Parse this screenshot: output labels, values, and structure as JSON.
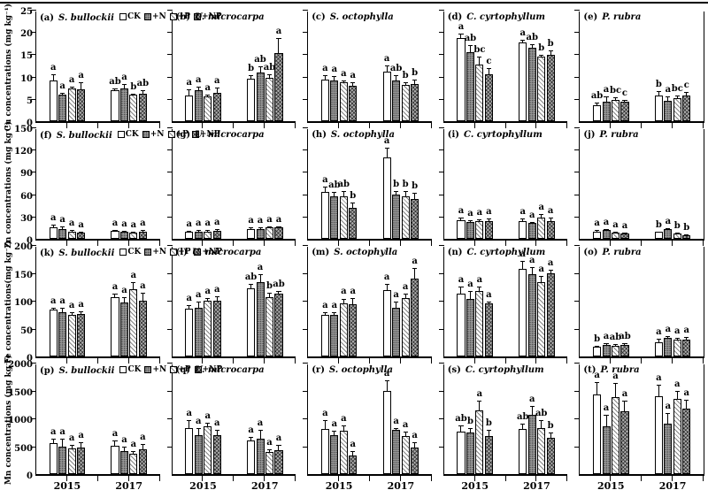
{
  "chart_data": {
    "type": "bar",
    "x_categories": [
      "2015",
      "2017"
    ],
    "treatments": [
      {
        "label": "CK",
        "pattern": "ck"
      },
      {
        "label": "+N",
        "pattern": "n"
      },
      {
        "label": "+P",
        "pattern": "p"
      },
      {
        "label": "+NP",
        "pattern": "np"
      }
    ],
    "rows": [
      {
        "element": "Cu",
        "ylabel": "Cu concentrations (mg kg⁻¹)",
        "ymax": 25,
        "yticks": [
          0,
          5,
          10,
          15,
          20,
          25
        ]
      },
      {
        "element": "Zn",
        "ylabel": "Zn concentrations (mg kg⁻¹)",
        "ymax": 150,
        "yticks": [
          0,
          30,
          60,
          90,
          120,
          150
        ]
      },
      {
        "element": "Fe",
        "ylabel": "Fe concentrations(mg kg⁻¹)",
        "ymax": 200,
        "yticks": [
          0,
          50,
          100,
          150,
          200
        ]
      },
      {
        "element": "Mn",
        "ylabel": "Mn concentrations (mg kg⁻¹)",
        "ymax": 2000,
        "yticks": [
          0,
          500,
          1000,
          1500,
          2000
        ]
      }
    ],
    "panels": [
      {
        "id": "a",
        "label": "(a)",
        "species": "S. bullockii",
        "element": "Cu",
        "groups": [
          {
            "year": "2015",
            "values": [
              9.2,
              5.9,
              7.4,
              7.2
            ],
            "errors": [
              1.4,
              0.4,
              0.4,
              1.6
            ],
            "letters": [
              "a",
              "a",
              "a",
              "a"
            ]
          },
          {
            "year": "2017",
            "values": [
              7.0,
              7.4,
              5.9,
              6.2
            ],
            "errors": [
              0.4,
              0.9,
              0.3,
              0.8
            ],
            "letters": [
              "ab",
              "a",
              "b",
              "ab"
            ]
          }
        ]
      },
      {
        "id": "b",
        "label": "(b)",
        "species": "U. microcarpa",
        "element": "Cu",
        "groups": [
          {
            "year": "2015",
            "values": [
              5.8,
              7.0,
              5.5,
              6.4
            ],
            "errors": [
              1.3,
              0.7,
              0.4,
              1.2
            ],
            "letters": [
              "a",
              "a",
              "a",
              "a"
            ]
          },
          {
            "year": "2017",
            "values": [
              9.5,
              11.0,
              9.7,
              15.3
            ],
            "errors": [
              0.8,
              1.4,
              0.9,
              3.3
            ],
            "letters": [
              "b",
              "ab",
              "ab",
              "a"
            ]
          }
        ]
      },
      {
        "id": "c",
        "label": "(c)",
        "species": "S. octophylla",
        "element": "Cu",
        "groups": [
          {
            "year": "2015",
            "values": [
              9.4,
              9.2,
              8.7,
              7.9
            ],
            "errors": [
              0.9,
              0.9,
              0.5,
              0.9
            ],
            "letters": [
              "a",
              "a",
              "a",
              "a"
            ]
          },
          {
            "year": "2017",
            "values": [
              11.2,
              9.2,
              8.2,
              8.3
            ],
            "errors": [
              1.3,
              1.2,
              0.6,
              1.0
            ],
            "letters": [
              "a",
              "ab",
              "b",
              "b"
            ]
          }
        ]
      },
      {
        "id": "d",
        "label": "(d)",
        "species": "C. cyrtophyllum",
        "element": "Cu",
        "groups": [
          {
            "year": "2015",
            "values": [
              18.6,
              15.4,
              12.7,
              10.5
            ],
            "errors": [
              1.0,
              1.7,
              1.8,
              1.5
            ],
            "letters": [
              "a",
              "ab",
              "bc",
              "c"
            ]
          },
          {
            "year": "2017",
            "values": [
              17.6,
              16.5,
              14.4,
              14.8
            ],
            "errors": [
              0.6,
              0.8,
              0.5,
              1.0
            ],
            "letters": [
              "a",
              "ab",
              "b",
              "b"
            ]
          }
        ]
      },
      {
        "id": "e",
        "label": "(e)",
        "species": "P. rubra",
        "element": "Cu",
        "groups": [
          {
            "year": "2015",
            "values": [
              3.6,
              4.4,
              4.7,
              4.3
            ],
            "errors": [
              0.5,
              1.2,
              0.6,
              0.4
            ],
            "letters": [
              "ab",
              "a",
              "bc",
              "c"
            ]
          },
          {
            "year": "2017",
            "values": [
              5.7,
              4.6,
              5.2,
              5.8
            ],
            "errors": [
              1.1,
              0.9,
              0.6,
              0.7
            ],
            "letters": [
              "b",
              "a",
              "bc",
              "c"
            ]
          }
        ]
      },
      {
        "id": "f",
        "label": "(f)",
        "species": "S. bullockii",
        "element": "Zn",
        "groups": [
          {
            "year": "2015",
            "values": [
              15,
              13,
              10,
              8
            ],
            "errors": [
              3.5,
              3.5,
              1.5,
              1.0
            ],
            "letters": [
              "a",
              "a",
              "a",
              "a"
            ]
          },
          {
            "year": "2017",
            "values": [
              11,
              9,
              8.5,
              10
            ],
            "errors": [
              1.5,
              1.5,
              1.0,
              1.5
            ],
            "letters": [
              "a",
              "a",
              "a",
              "a"
            ]
          }
        ]
      },
      {
        "id": "g",
        "label": "(g)",
        "species": "U. microcarpa",
        "element": "Zn",
        "groups": [
          {
            "year": "2015",
            "values": [
              9,
              10,
              10,
              11
            ],
            "errors": [
              1.5,
              1.5,
              1.5,
              2.0
            ],
            "letters": [
              "a",
              "a",
              "a",
              "a"
            ]
          },
          {
            "year": "2017",
            "values": [
              13,
              13,
              15,
              15
            ],
            "errors": [
              2,
              2,
              2,
              2
            ],
            "letters": [
              "a",
              "a",
              "a",
              "a"
            ]
          }
        ]
      },
      {
        "id": "h",
        "label": "(h)",
        "species": "S. octophylla",
        "element": "Zn",
        "groups": [
          {
            "year": "2015",
            "values": [
              63,
              57,
              57,
              42
            ],
            "errors": [
              7,
              6,
              7,
              7
            ],
            "letters": [
              "a",
              "ab",
              "ab",
              "b"
            ]
          },
          {
            "year": "2017",
            "values": [
              110,
              59,
              57,
              53
            ],
            "errors": [
              13,
              5,
              7,
              9
            ],
            "letters": [
              "a",
              "b",
              "b",
              "b"
            ]
          }
        ]
      },
      {
        "id": "i",
        "label": "(i)",
        "species": "C. cyrtophyllum",
        "element": "Zn",
        "groups": [
          {
            "year": "2015",
            "values": [
              25,
              23,
              24,
              24
            ],
            "errors": [
              4,
              2,
              2,
              3
            ],
            "letters": [
              "a",
              "a",
              "a",
              "a"
            ]
          },
          {
            "year": "2017",
            "values": [
              24,
              21,
              28,
              24
            ],
            "errors": [
              3,
              2,
              5,
              4
            ],
            "letters": [
              "a",
              "a",
              "a",
              "a"
            ]
          }
        ]
      },
      {
        "id": "j",
        "label": "(j)",
        "species": "P. rubra",
        "element": "Zn",
        "groups": [
          {
            "year": "2015",
            "values": [
              10,
              12,
              8,
              7
            ],
            "errors": [
              1.5,
              1.5,
              1.0,
              1.0
            ],
            "letters": [
              "a",
              "a",
              "a",
              "a"
            ]
          },
          {
            "year": "2017",
            "values": [
              9,
              13,
              7,
              5
            ],
            "errors": [
              1.0,
              1.5,
              1.0,
              1.0
            ],
            "letters": [
              "b",
              "a",
              "b",
              "b"
            ]
          }
        ]
      },
      {
        "id": "k",
        "label": "(k)",
        "species": "S. bullockii",
        "element": "Fe",
        "groups": [
          {
            "year": "2015",
            "values": [
              84,
              79,
              74,
              76
            ],
            "errors": [
              3,
              8,
              6,
              5
            ],
            "letters": [
              "a",
              "a",
              "a",
              "a"
            ]
          },
          {
            "year": "2017",
            "values": [
              106,
              97,
              121,
              100
            ],
            "errors": [
              7,
              9,
              12,
              14
            ],
            "letters": [
              "a",
              "a",
              "a",
              "a"
            ]
          }
        ]
      },
      {
        "id": "l",
        "label": "(l)",
        "species": "U. microcarpa",
        "element": "Fe",
        "groups": [
          {
            "year": "2015",
            "values": [
              85,
              88,
              100,
              100
            ],
            "errors": [
              7,
              10,
              4,
              8
            ],
            "letters": [
              "a",
              "a",
              "a",
              "a"
            ]
          },
          {
            "year": "2017",
            "values": [
              122,
              133,
              107,
              112
            ],
            "errors": [
              8,
              15,
              7,
              6
            ],
            "letters": [
              "ab",
              "a",
              "b",
              "ab"
            ]
          }
        ]
      },
      {
        "id": "m",
        "label": "(m)",
        "species": "S. octophylla",
        "element": "Fe",
        "groups": [
          {
            "year": "2015",
            "values": [
              75,
              75,
              95,
              94
            ],
            "errors": [
              4,
              4,
              9,
              10
            ],
            "letters": [
              "a",
              "a",
              "a",
              "a"
            ]
          },
          {
            "year": "2017",
            "values": [
              119,
              88,
              104,
              140
            ],
            "errors": [
              11,
              10,
              9,
              18
            ],
            "letters": [
              "a",
              "a",
              "a",
              "a"
            ]
          }
        ]
      },
      {
        "id": "n",
        "label": "(n)",
        "species": "C. cyrtophyllum",
        "element": "Fe",
        "groups": [
          {
            "year": "2015",
            "values": [
              113,
              103,
              118,
              95
            ],
            "errors": [
              12,
              14,
              8,
              4
            ],
            "letters": [
              "a",
              "a",
              "a",
              "a"
            ]
          },
          {
            "year": "2017",
            "values": [
              157,
              148,
              133,
              150
            ],
            "errors": [
              15,
              12,
              12,
              5
            ],
            "letters": [
              "a",
              "a",
              "a",
              "a"
            ]
          }
        ]
      },
      {
        "id": "o",
        "label": "(o)",
        "species": "P. rubra",
        "element": "Fe",
        "groups": [
          {
            "year": "2015",
            "values": [
              17,
              21,
              19,
              20
            ],
            "errors": [
              2,
              3,
              3,
              4
            ],
            "letters": [
              "b",
              "a",
              "ab",
              "ab"
            ]
          },
          {
            "year": "2017",
            "values": [
              26,
              33,
              30,
              30
            ],
            "errors": [
              6,
              3,
              4,
              5
            ],
            "letters": [
              "a",
              "a",
              "a",
              "a"
            ]
          }
        ]
      },
      {
        "id": "p",
        "label": "(p)",
        "species": "S. bullockii",
        "element": "Mn",
        "groups": [
          {
            "year": "2015",
            "values": [
              560,
              500,
              460,
              480
            ],
            "errors": [
              70,
              140,
              60,
              90
            ],
            "letters": [
              "a",
              "a",
              "a",
              "a"
            ]
          },
          {
            "year": "2017",
            "values": [
              510,
              410,
              360,
              450
            ],
            "errors": [
              90,
              90,
              50,
              90
            ],
            "letters": [
              "a",
              "a",
              "a",
              "a"
            ]
          }
        ]
      },
      {
        "id": "q",
        "label": "(q)",
        "species": "U. microcarpa",
        "element": "Mn",
        "groups": [
          {
            "year": "2015",
            "values": [
              820,
              700,
              860,
              700
            ],
            "errors": [
              150,
              120,
              60,
              90
            ],
            "letters": [
              "a",
              "a",
              "a",
              "a"
            ]
          },
          {
            "year": "2017",
            "values": [
              600,
              640,
              400,
              430
            ],
            "errors": [
              60,
              160,
              50,
              90
            ],
            "letters": [
              "a",
              "a",
              "a",
              "a"
            ]
          }
        ]
      },
      {
        "id": "r",
        "label": "(r)",
        "species": "S. octophylla",
        "element": "Mn",
        "groups": [
          {
            "year": "2015",
            "values": [
              810,
              700,
              780,
              330
            ],
            "errors": [
              160,
              80,
              90,
              80
            ],
            "letters": [
              "a",
              "a",
              "a",
              "a"
            ]
          },
          {
            "year": "2017",
            "values": [
              1500,
              790,
              680,
              480
            ],
            "errors": [
              180,
              30,
              90,
              90
            ],
            "letters": [
              "a",
              "a",
              "a",
              "a"
            ]
          }
        ]
      },
      {
        "id": "s",
        "label": "(s)",
        "species": "C. cyrtophyllum",
        "element": "Mn",
        "groups": [
          {
            "year": "2015",
            "values": [
              760,
              740,
              1150,
              680
            ],
            "errors": [
              110,
              80,
              170,
              120
            ],
            "letters": [
              "ab",
              "b",
              "a",
              "b"
            ]
          },
          {
            "year": "2017",
            "values": [
              810,
              1060,
              830,
              650
            ],
            "errors": [
              100,
              160,
              140,
              90
            ],
            "letters": [
              "ab",
              "a",
              "ab",
              "b"
            ]
          }
        ]
      },
      {
        "id": "t",
        "label": "(t)",
        "species": "P. rubra",
        "element": "Mn",
        "groups": [
          {
            "year": "2015",
            "values": [
              1430,
              850,
              1380,
              1130
            ],
            "errors": [
              220,
              220,
              260,
              190
            ],
            "letters": [
              "a",
              "a",
              "a",
              "a"
            ]
          },
          {
            "year": "2017",
            "values": [
              1400,
              900,
              1350,
              1180
            ],
            "errors": [
              210,
              190,
              150,
              160
            ],
            "letters": [
              "a",
              "a",
              "a",
              "a"
            ]
          }
        ]
      }
    ]
  }
}
